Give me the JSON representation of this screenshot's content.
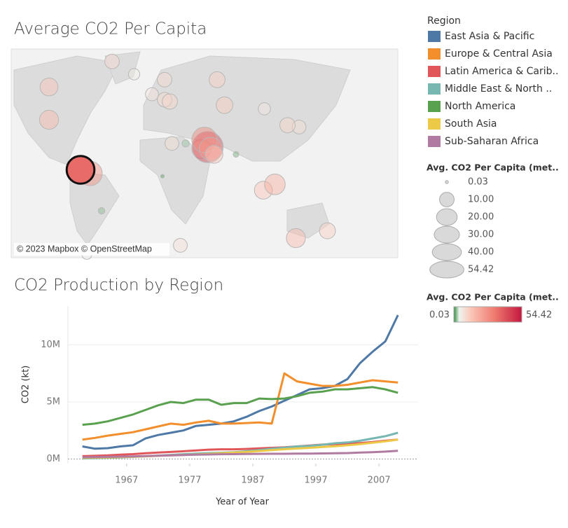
{
  "map": {
    "title": "Average CO2 Per Capita",
    "attribution": "© 2023 Mapbox © OpenStreetMap",
    "points": [
      {
        "lon": -100,
        "lat": 40,
        "value": 17
      },
      {
        "lon": -100,
        "lat": 58,
        "value": 15
      },
      {
        "lon": -40,
        "lat": 72,
        "value": 10
      },
      {
        "lon": -19,
        "lat": 65,
        "value": 6
      },
      {
        "lon": 10,
        "lat": 62,
        "value": 10
      },
      {
        "lon": 60,
        "lat": 62,
        "value": 12
      },
      {
        "lon": 67,
        "lat": 48,
        "value": 13
      },
      {
        "lon": -2,
        "lat": 54,
        "value": 8
      },
      {
        "lon": 10,
        "lat": 51,
        "value": 10
      },
      {
        "lon": 15,
        "lat": 50,
        "value": 11
      },
      {
        "lon": 45,
        "lat": 24,
        "value": 17
      },
      {
        "lon": 51,
        "lat": 25,
        "value": 45
      },
      {
        "lon": 48,
        "lat": 29,
        "value": 30
      },
      {
        "lon": 54,
        "lat": 24,
        "value": 25
      },
      {
        "lon": 57,
        "lat": 21,
        "value": 15
      },
      {
        "lon": 17,
        "lat": 27,
        "value": 9
      },
      {
        "lon": 25,
        "lat": -29,
        "value": 9
      },
      {
        "lon": 135,
        "lat": -25,
        "value": 17
      },
      {
        "lon": 138,
        "lat": 36,
        "value": 9
      },
      {
        "lon": 127,
        "lat": 37,
        "value": 11
      },
      {
        "lon": 104,
        "lat": 1.3,
        "value": 15
      },
      {
        "lon": 115,
        "lat": 4.5,
        "value": 20
      },
      {
        "lon": 165,
        "lat": -21,
        "value": 12
      },
      {
        "lon": 105,
        "lat": 46,
        "value": 7
      },
      {
        "lon": -50,
        "lat": -10,
        "value": 2
      },
      {
        "lon": -64,
        "lat": -34,
        "value": 4.5
      },
      {
        "lon": 78,
        "lat": 21,
        "value": 1.5
      },
      {
        "lon": 8,
        "lat": 9,
        "value": 0.6
      },
      {
        "lon": 30,
        "lat": 27,
        "value": 2.4
      },
      {
        "lon": -61,
        "lat": 10.5,
        "value": 28
      },
      {
        "lon": -70,
        "lat": 12.5,
        "value": 36,
        "selected": true
      }
    ]
  },
  "legends": {
    "region_title": "Region",
    "size": {
      "title": "Avg. CO2 Per Capita (met..",
      "values": [
        0.03,
        {
          "value": 10,
          "label": "10.00"
        },
        {
          "value": 20,
          "label": "20.00"
        },
        {
          "value": 30,
          "label": "30.00"
        },
        {
          "value": 40,
          "label": "40.00"
        },
        54.42
      ]
    },
    "color": {
      "title": "Avg. CO2 Per Capita (met..",
      "min": 0.03,
      "max": 54.42
    }
  },
  "chart_data": {
    "type": "line",
    "title": "CO2 Production by Region",
    "x_label": "Year of Year",
    "y_label": "CO2 (kt)",
    "x": [
      1960,
      1962,
      1964,
      1966,
      1968,
      1970,
      1972,
      1974,
      1976,
      1978,
      1980,
      1982,
      1984,
      1986,
      1988,
      1990,
      1992,
      1994,
      1996,
      1998,
      2000,
      2002,
      2004,
      2006,
      2008,
      2010
    ],
    "xlim": [
      1957.7,
      2013.2
    ],
    "xticks": [
      1967,
      1977,
      1987,
      1997,
      2007
    ],
    "ylim": [
      -400000,
      13400000
    ],
    "yticks": [
      {
        "value": 0,
        "label": "0M"
      },
      {
        "value": 5000000,
        "label": "5M"
      },
      {
        "value": 10000000,
        "label": "10M"
      }
    ],
    "grid": true,
    "series": [
      {
        "name": "East Asia & Pacific",
        "color": "#4e79a7",
        "values": [
          1100000,
          900000,
          950000,
          1100000,
          1200000,
          1800000,
          2100000,
          2300000,
          2500000,
          2900000,
          3000000,
          3100000,
          3300000,
          3700000,
          4200000,
          4600000,
          5100000,
          5600000,
          6100000,
          6200000,
          6400000,
          7000000,
          8400000,
          9400000,
          10300000,
          12600000
        ]
      },
      {
        "name": "Europe & Central Asia",
        "color": "#f28e2b",
        "values": [
          1700000,
          1850000,
          2050000,
          2200000,
          2350000,
          2600000,
          2850000,
          3100000,
          3000000,
          3200000,
          3350000,
          3100000,
          3100000,
          3150000,
          3200000,
          3100000,
          7500000,
          6800000,
          6600000,
          6400000,
          6400000,
          6500000,
          6700000,
          6900000,
          6800000,
          6700000
        ]
      },
      {
        "name": "Latin America & Carib..",
        "color": "#e15759",
        "values": [
          250000,
          280000,
          320000,
          380000,
          430000,
          500000,
          560000,
          620000,
          680000,
          750000,
          820000,
          850000,
          850000,
          880000,
          930000,
          980000,
          1030000,
          1100000,
          1180000,
          1260000,
          1300000,
          1330000,
          1400000,
          1480000,
          1600000,
          1700000
        ]
      },
      {
        "name": "Middle East & North ..",
        "color": "#76b7b2",
        "values": [
          50000,
          80000,
          100000,
          140000,
          180000,
          240000,
          300000,
          360000,
          420000,
          480000,
          520000,
          550000,
          600000,
          680000,
          780000,
          900000,
          1000000,
          1100000,
          1150000,
          1250000,
          1380000,
          1450000,
          1600000,
          1800000,
          2000000,
          2300000
        ]
      },
      {
        "name": "North America",
        "color": "#59a14f",
        "values": [
          3000000,
          3100000,
          3300000,
          3600000,
          3900000,
          4300000,
          4700000,
          5000000,
          4900000,
          5200000,
          5200000,
          4750000,
          4900000,
          4900000,
          5300000,
          5250000,
          5300000,
          5500000,
          5800000,
          5900000,
          6100000,
          6100000,
          6200000,
          6300000,
          6100000,
          5800000
        ]
      },
      {
        "name": "South Asia",
        "color": "#edc948",
        "values": [
          100000,
          120000,
          140000,
          170000,
          200000,
          240000,
          280000,
          320000,
          360000,
          400000,
          450000,
          500000,
          560000,
          620000,
          700000,
          780000,
          860000,
          920000,
          980000,
          1050000,
          1120000,
          1200000,
          1300000,
          1420000,
          1550000,
          1700000
        ]
      },
      {
        "name": "Sub-Saharan Africa",
        "color": "#b07aa1",
        "values": [
          150000,
          170000,
          190000,
          210000,
          230000,
          260000,
          290000,
          320000,
          350000,
          380000,
          400000,
          420000,
          430000,
          440000,
          450000,
          460000,
          460000,
          470000,
          480000,
          490000,
          500000,
          520000,
          560000,
          600000,
          650000,
          720000
        ]
      }
    ]
  }
}
